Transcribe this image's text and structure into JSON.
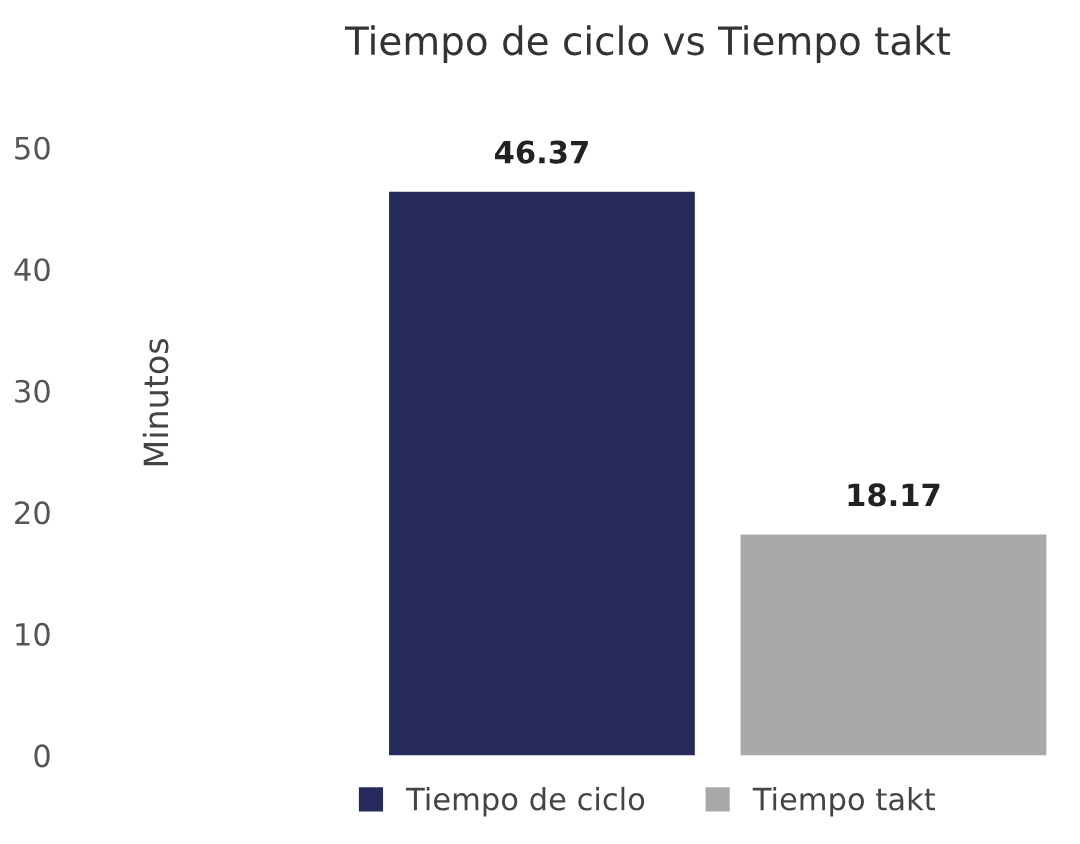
{
  "chart_data": {
    "type": "bar",
    "title": "Tiempo de ciclo vs Tiempo takt",
    "ylabel": "Minutos",
    "categories": [
      null,
      null
    ],
    "series": [
      {
        "name": "Tiempo de ciclo",
        "color": "#272b5c",
        "values": [
          46.37,
          null
        ]
      },
      {
        "name": "Tiempo takt",
        "color": "#a9a9a9",
        "values": [
          null,
          18.17
        ]
      }
    ],
    "ylim": [
      0,
      50
    ],
    "yticks": [
      0,
      10,
      20,
      30,
      40,
      50
    ],
    "stacked": true,
    "grid": false,
    "legend": "bottom",
    "data_labels": true
  }
}
